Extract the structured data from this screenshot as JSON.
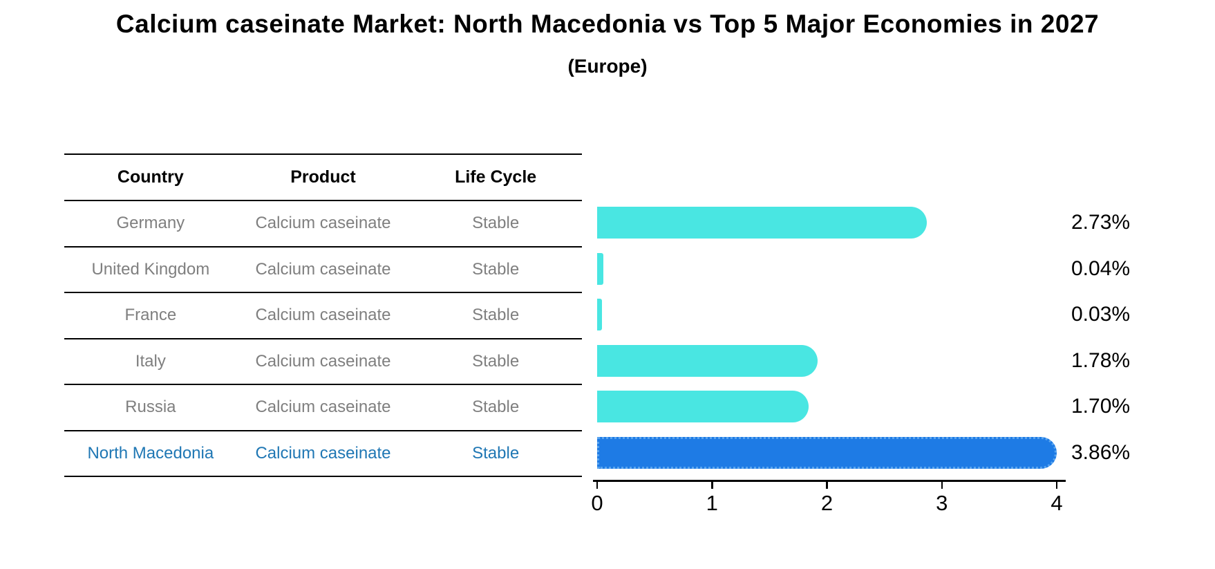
{
  "title": "Calcium caseinate Market: North Macedonia vs Top 5 Major Economies in 2027",
  "subtitle": "(Europe)",
  "colors": {
    "bar_default": "#49E6E2",
    "bar_highlight": "#1E7BE5",
    "bar_highlight_edge": "#5AA5EF",
    "highlight_text": "#1f77b4",
    "row_text": "#7f7f7f",
    "header_text": "#000000",
    "axis": "#000000"
  },
  "table": {
    "headers": [
      "Country",
      "Product",
      "Life Cycle"
    ],
    "rows": [
      {
        "country": "Germany",
        "product": "Calcium caseinate",
        "life_cycle": "Stable",
        "highlight": false
      },
      {
        "country": "United Kingdom",
        "product": "Calcium caseinate",
        "life_cycle": "Stable",
        "highlight": false
      },
      {
        "country": "France",
        "product": "Calcium caseinate",
        "life_cycle": "Stable",
        "highlight": false
      },
      {
        "country": "Italy",
        "product": "Calcium caseinate",
        "life_cycle": "Stable",
        "highlight": false
      },
      {
        "country": "Russia",
        "product": "Calcium caseinate",
        "life_cycle": "Stable",
        "highlight": false
      },
      {
        "country": "North Macedonia",
        "product": "Calcium caseinate",
        "life_cycle": "Stable",
        "highlight": true
      }
    ]
  },
  "chart_data": {
    "type": "bar",
    "orientation": "horizontal",
    "title": "Calcium caseinate Market: North Macedonia vs Top 5 Major Economies in 2027",
    "subtitle": "(Europe)",
    "categories": [
      "Germany",
      "United Kingdom",
      "France",
      "Italy",
      "Russia",
      "North Macedonia"
    ],
    "values": [
      2.73,
      0.04,
      0.03,
      1.78,
      1.7,
      3.86
    ],
    "value_labels": [
      "2.73%",
      "0.04%",
      "0.03%",
      "1.78%",
      "1.70%",
      "3.86%"
    ],
    "highlight_index": 5,
    "x_ticks": [
      0,
      1,
      2,
      3,
      4
    ],
    "xlim": [
      0,
      4
    ],
    "xlabel": "",
    "ylabel": "",
    "grid": false,
    "legend": false
  }
}
